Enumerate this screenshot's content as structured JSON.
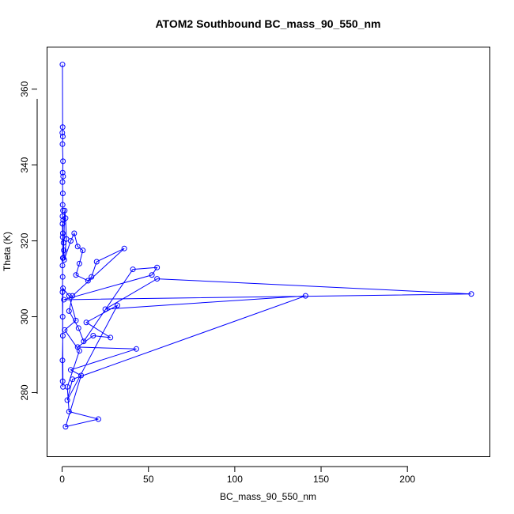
{
  "chart_data": {
    "type": "line",
    "title": "ATOM2 Southbound BC_mass_90_550_nm",
    "xlabel": "BC_mass_90_550_nm",
    "ylabel": "Theta (K)",
    "xlim": [
      -8.5,
      248
    ],
    "ylim": [
      263,
      371
    ],
    "xticks": [
      0,
      50,
      100,
      150,
      200
    ],
    "yticks": [
      280,
      300,
      320,
      340,
      360
    ],
    "ytick_rotation": "vertical",
    "grid": false,
    "legend": "none",
    "color": "#0000ff",
    "marker": "open-circle",
    "series": [
      {
        "x": [
          0.2,
          0.3,
          0.1,
          0.4,
          0.2,
          0.5,
          0.3,
          0.6,
          0.2,
          0.4,
          0.3,
          0.5,
          0.2,
          0.6,
          0.4,
          0.3,
          0.8,
          1.0,
          0.7,
          1.5,
          2.0,
          2.5,
          1.2,
          5.0,
          7.0,
          9.0,
          12.0,
          10.0,
          8.0,
          15.0,
          17.0,
          20.0,
          36.0,
          6.0,
          4.0,
          9.5,
          12.5,
          41.0,
          55.0,
          52.0,
          1.0,
          237.0,
          55.0,
          25.0,
          141.0,
          6.0,
          3.0,
          32.0,
          14.0,
          28.0,
          18.0,
          9.0,
          43.0,
          5.0,
          11.0,
          2.0,
          21.0,
          4.0,
          3.0,
          10.0,
          1.5,
          8.0,
          4.0,
          0.5,
          0.3,
          0.4,
          0.2,
          0.3,
          0.5,
          0.2,
          0.3,
          0.2,
          0.4,
          0.2
        ],
        "y": [
          366.5,
          350.0,
          348.5,
          347.5,
          345.5,
          341.0,
          338.0,
          337.0,
          335.5,
          332.5,
          329.5,
          328.0,
          326.5,
          325.5,
          322.0,
          321.0,
          319.5,
          317.5,
          315.5,
          328.0,
          326.0,
          320.5,
          315.0,
          320.0,
          322.0,
          318.5,
          317.5,
          314.0,
          311.0,
          309.5,
          310.5,
          314.5,
          318.0,
          305.5,
          301.5,
          297.0,
          293.5,
          312.5,
          313.0,
          311.0,
          304.5,
          306.0,
          310.0,
          302.0,
          305.5,
          283.5,
          278.0,
          303.0,
          298.5,
          294.5,
          295.0,
          292.0,
          291.5,
          286.0,
          284.5,
          271.0,
          273.0,
          275.0,
          281.5,
          291.0,
          296.5,
          299.0,
          305.5,
          307.5,
          300.0,
          295.0,
          288.5,
          283.0,
          281.5,
          306.5,
          310.5,
          313.5,
          315.5,
          324.5
        ]
      }
    ]
  }
}
